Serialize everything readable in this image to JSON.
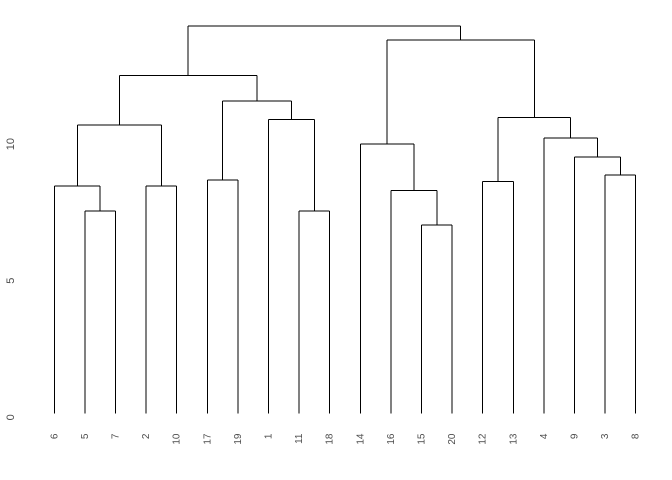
{
  "figure": {
    "background": "#ffffff",
    "line_color": "#000000",
    "label_color": "#4d4d4d"
  },
  "chart_data": {
    "type": "dendrogram",
    "title": "",
    "xlabel": "",
    "ylabel": "",
    "orientation": "vertical",
    "grid": "off",
    "legend": "none",
    "ylim": [
      0,
      14.6
    ],
    "yticks": [
      {
        "value": 0,
        "label": "0"
      },
      {
        "value": 5,
        "label": "5"
      },
      {
        "value": 10,
        "label": "10"
      }
    ],
    "leaf_order": [
      "6",
      "5",
      "7",
      "2",
      "10",
      "17",
      "19",
      "1",
      "11",
      "18",
      "14",
      "16",
      "15",
      "20",
      "12",
      "13",
      "4",
      "9",
      "3",
      "8"
    ],
    "tree": {
      "height": 14.18,
      "children": [
        {
          "height": 12.37,
          "children": [
            {
              "height": 10.55,
              "children": [
                {
                  "height": 8.32,
                  "children": [
                    {
                      "leaf": "6"
                    },
                    {
                      "height": 7.4,
                      "children": [
                        {
                          "leaf": "5"
                        },
                        {
                          "leaf": "7"
                        }
                      ]
                    }
                  ]
                },
                {
                  "height": 8.32,
                  "children": [
                    {
                      "leaf": "2"
                    },
                    {
                      "leaf": "10"
                    }
                  ]
                }
              ]
            },
            {
              "height": 11.43,
              "children": [
                {
                  "height": 8.54,
                  "children": [
                    {
                      "leaf": "17"
                    },
                    {
                      "leaf": "19"
                    }
                  ]
                },
                {
                  "height": 10.76,
                  "children": [
                    {
                      "leaf": "1"
                    },
                    {
                      "height": 7.4,
                      "children": [
                        {
                          "leaf": "11"
                        },
                        {
                          "leaf": "18"
                        }
                      ]
                    }
                  ]
                }
              ]
            }
          ]
        },
        {
          "height": 13.66,
          "children": [
            {
              "height": 9.86,
              "children": [
                {
                  "leaf": "14"
                },
                {
                  "height": 8.16,
                  "children": [
                    {
                      "leaf": "16"
                    },
                    {
                      "height": 6.89,
                      "children": [
                        {
                          "leaf": "15"
                        },
                        {
                          "leaf": "20"
                        }
                      ]
                    }
                  ]
                }
              ]
            },
            {
              "height": 10.82,
              "children": [
                {
                  "height": 8.48,
                  "children": [
                    {
                      "leaf": "12"
                    },
                    {
                      "leaf": "13"
                    }
                  ]
                },
                {
                  "height": 10.07,
                  "children": [
                    {
                      "leaf": "4"
                    },
                    {
                      "height": 9.39,
                      "children": [
                        {
                          "leaf": "9"
                        },
                        {
                          "height": 8.72,
                          "children": [
                            {
                              "leaf": "3"
                            },
                            {
                              "leaf": "8"
                            }
                          ]
                        }
                      ]
                    }
                  ]
                }
              ]
            }
          ]
        }
      ]
    }
  }
}
